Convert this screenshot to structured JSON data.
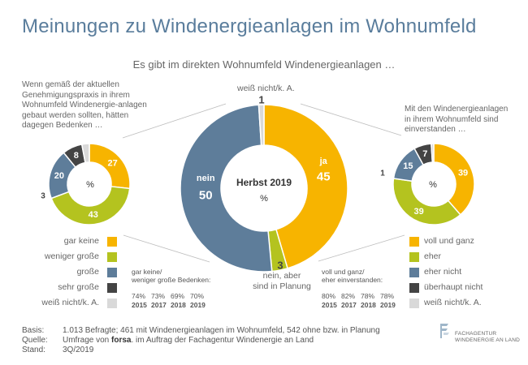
{
  "title": "Meinungen zu Windenergieanlagen im Wohnumfeld",
  "subtitle": "Es gibt im direkten Wohnumfeld Windenergieanlagen …",
  "left_note": "Wenn gemäß der aktuellen Genehmigungspraxis in ihrem Wohnumfeld Windenergie-anlagen gebaut werden sollten, hätten dagegen Bedenken …",
  "right_note": "Mit den Windenergieanlagen in ihrem Wohnumfeld sind einverstanden …",
  "center_label_top": "weiß nicht/k. A.",
  "center_label_bottom": "nein, aber\nsind in Planung",
  "center_inner_1": "Herbst 2019",
  "center_inner_2": "%",
  "left_inner": "%",
  "right_inner": "%",
  "left_legend": [
    "gar keine",
    "weniger große",
    "große",
    "sehr große",
    "weiß nicht/k. A."
  ],
  "right_legend": [
    "voll und ganz",
    "eher",
    "eher nicht",
    "überhaupt nicht",
    "weiß nicht/k. A."
  ],
  "colors": {
    "orange": "#f7b400",
    "olive": "#b4c31f",
    "blue": "#5e7d9a",
    "dark": "#444444",
    "light": "#d9d9d9",
    "title": "#5a7d9c"
  },
  "left_years": {
    "head": "gar keine/\nweniger große Bedenken:",
    "values": [
      "74%",
      "73%",
      "69%",
      "70%"
    ],
    "years": [
      "2015",
      "2017",
      "2018",
      "2019"
    ]
  },
  "right_years": {
    "head": "voll und ganz/\neher einverstanden:",
    "values": [
      "80%",
      "82%",
      "78%",
      "78%"
    ],
    "years": [
      "2015",
      "2017",
      "2018",
      "2019"
    ]
  },
  "footer": {
    "basis_label": "Basis:",
    "basis_text": "1.013 Befragte; 461 mit Windenergieanlagen im Wohnumfeld, 542 ohne bzw. in Planung",
    "quelle_label": "Quelle:",
    "quelle_pre": "Umfrage von ",
    "quelle_brand": "forsa",
    "quelle_post": ". im Auftrag der Fachagentur Windenergie an Land",
    "stand_label": "Stand:",
    "stand_text": "3Q/2019"
  },
  "logo": {
    "line1": "FACHAGENTUR",
    "line2": "WINDENERGIE AN LAND"
  },
  "chart_data": [
    {
      "type": "pie",
      "title": "Herbst 2019",
      "categories": [
        "ja",
        "nein, aber sind in Planung",
        "nein",
        "weiß nicht/k. A."
      ],
      "values": [
        45,
        3,
        50,
        1
      ],
      "labels": [
        "ja",
        "",
        "nein",
        ""
      ],
      "colors": [
        "#f7b400",
        "#b4c31f",
        "#5e7d9a",
        "#d9d9d9"
      ]
    },
    {
      "type": "pie",
      "categories": [
        "gar keine",
        "weniger große",
        "große",
        "sehr große",
        "weiß nicht/k. A."
      ],
      "values": [
        27,
        43,
        20,
        8,
        3
      ],
      "colors": [
        "#f7b400",
        "#b4c31f",
        "#5e7d9a",
        "#444444",
        "#d9d9d9"
      ]
    },
    {
      "type": "pie",
      "categories": [
        "voll und ganz",
        "eher",
        "eher nicht",
        "überhaupt nicht",
        "weiß nicht/k. A."
      ],
      "values": [
        39,
        39,
        15,
        7,
        1
      ],
      "colors": [
        "#f7b400",
        "#b4c31f",
        "#5e7d9a",
        "#444444",
        "#d9d9d9"
      ]
    }
  ]
}
